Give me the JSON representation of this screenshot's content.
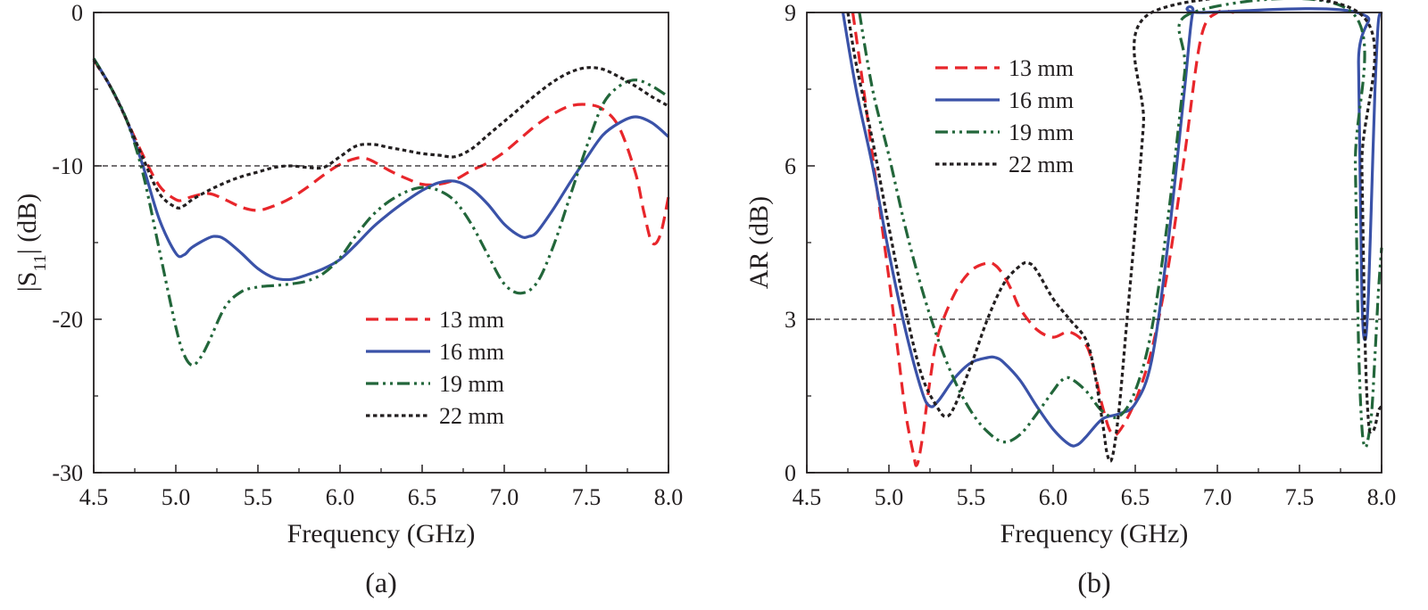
{
  "chart_data": [
    {
      "type": "line",
      "panel_label": "(a)",
      "xlabel": "Frequency (GHz)",
      "ylabel": {
        "base": "|S",
        "sub": "11",
        "rest": "| (dB)"
      },
      "xlim": [
        4.5,
        8.0
      ],
      "ylim": [
        -30,
        0
      ],
      "xticks": [
        "4.5",
        "5.0",
        "5.5",
        "6.0",
        "6.5",
        "7.0",
        "7.5",
        "8.0"
      ],
      "xtick_values": [
        4.5,
        5.0,
        5.5,
        6.0,
        6.5,
        7.0,
        7.5,
        8.0
      ],
      "yticks": [
        "0",
        "-10",
        "-20",
        "-30"
      ],
      "ytick_values": [
        0,
        -10,
        -20,
        -30
      ],
      "reference_line": -10,
      "grid": false,
      "legend_position": "center-right",
      "series": [
        {
          "name": "13 mm",
          "color": "#e8262b",
          "dash": "dashed",
          "x": [
            4.5,
            4.6,
            4.7,
            4.8,
            4.9,
            5.0,
            5.05,
            5.1,
            5.2,
            5.3,
            5.4,
            5.5,
            5.6,
            5.7,
            5.8,
            5.9,
            6.0,
            6.1,
            6.15,
            6.2,
            6.3,
            6.4,
            6.5,
            6.6,
            6.7,
            6.8,
            6.9,
            7.0,
            7.1,
            7.2,
            7.3,
            7.4,
            7.5,
            7.6,
            7.7,
            7.8,
            7.85,
            7.9,
            7.95,
            8.0
          ],
          "y": [
            -3.1,
            -4.8,
            -7.0,
            -9.3,
            -11.3,
            -12.2,
            -12.2,
            -12.0,
            -11.8,
            -12.2,
            -12.7,
            -12.9,
            -12.6,
            -12.1,
            -11.4,
            -10.6,
            -9.9,
            -9.5,
            -9.5,
            -9.7,
            -10.3,
            -10.8,
            -11.2,
            -11.2,
            -10.9,
            -10.3,
            -9.8,
            -9.1,
            -8.2,
            -7.3,
            -6.6,
            -6.1,
            -6.0,
            -6.3,
            -7.5,
            -10.5,
            -13.0,
            -15.0,
            -14.5,
            -12.0
          ]
        },
        {
          "name": "16 mm",
          "color": "#3a52a8",
          "dash": "solid",
          "x": [
            4.5,
            4.6,
            4.7,
            4.8,
            4.9,
            5.0,
            5.05,
            5.1,
            5.2,
            5.25,
            5.3,
            5.4,
            5.5,
            5.6,
            5.7,
            5.8,
            5.9,
            6.0,
            6.1,
            6.2,
            6.3,
            6.4,
            6.5,
            6.6,
            6.7,
            6.8,
            6.9,
            7.0,
            7.1,
            7.15,
            7.2,
            7.3,
            7.4,
            7.5,
            7.6,
            7.7,
            7.8,
            7.9,
            8.0
          ],
          "y": [
            -3.0,
            -4.8,
            -7.0,
            -10.0,
            -13.5,
            -15.7,
            -15.8,
            -15.3,
            -14.7,
            -14.6,
            -14.8,
            -15.7,
            -16.7,
            -17.3,
            -17.4,
            -17.1,
            -16.7,
            -16.1,
            -15.1,
            -14.0,
            -13.1,
            -12.3,
            -11.6,
            -11.1,
            -11.0,
            -11.5,
            -12.5,
            -13.8,
            -14.6,
            -14.6,
            -14.3,
            -12.8,
            -11.1,
            -9.5,
            -8.0,
            -7.2,
            -6.8,
            -7.2,
            -8.1
          ]
        },
        {
          "name": "19 mm",
          "color": "#22663a",
          "dash": "dashdotdot",
          "x": [
            4.5,
            4.6,
            4.7,
            4.8,
            4.9,
            5.0,
            5.05,
            5.1,
            5.15,
            5.2,
            5.3,
            5.4,
            5.5,
            5.6,
            5.7,
            5.8,
            5.9,
            6.0,
            6.1,
            6.2,
            6.3,
            6.4,
            6.5,
            6.6,
            6.7,
            6.8,
            6.9,
            7.0,
            7.1,
            7.2,
            7.3,
            7.4,
            7.5,
            7.6,
            7.7,
            7.8,
            7.9,
            8.0
          ],
          "y": [
            -3.0,
            -4.8,
            -7.0,
            -10.5,
            -15.5,
            -20.5,
            -22.3,
            -23.0,
            -22.5,
            -21.5,
            -19.2,
            -18.2,
            -17.9,
            -17.8,
            -17.7,
            -17.5,
            -17.0,
            -16.0,
            -14.5,
            -13.2,
            -12.3,
            -11.7,
            -11.4,
            -11.6,
            -12.3,
            -13.8,
            -15.8,
            -17.7,
            -18.3,
            -17.6,
            -15.2,
            -12.0,
            -8.8,
            -6.0,
            -4.8,
            -4.4,
            -4.8,
            -5.5
          ]
        },
        {
          "name": "22 mm",
          "color": "#231f20",
          "dash": "dotted",
          "x": [
            4.5,
            4.6,
            4.7,
            4.8,
            4.9,
            5.0,
            5.05,
            5.1,
            5.2,
            5.3,
            5.4,
            5.5,
            5.6,
            5.7,
            5.8,
            5.9,
            6.0,
            6.1,
            6.2,
            6.3,
            6.4,
            6.5,
            6.6,
            6.7,
            6.8,
            6.9,
            7.0,
            7.1,
            7.2,
            7.3,
            7.4,
            7.5,
            7.6,
            7.7,
            7.8,
            7.9,
            8.0
          ],
          "y": [
            -3.1,
            -4.8,
            -7.0,
            -9.5,
            -11.8,
            -12.7,
            -12.6,
            -12.2,
            -11.6,
            -11.1,
            -10.7,
            -10.4,
            -10.1,
            -10.0,
            -10.1,
            -10.1,
            -9.4,
            -8.7,
            -8.6,
            -8.8,
            -9.0,
            -9.2,
            -9.3,
            -9.4,
            -8.9,
            -8.0,
            -7.1,
            -6.2,
            -5.3,
            -4.5,
            -3.9,
            -3.6,
            -3.7,
            -4.2,
            -4.8,
            -5.5,
            -6.1
          ]
        }
      ]
    },
    {
      "type": "line",
      "panel_label": "(b)",
      "xlabel": "Frequency (GHz)",
      "ylabel": "AR (dB)",
      "xlim": [
        4.5,
        8.0
      ],
      "ylim": [
        0,
        9
      ],
      "xticks": [
        "4.5",
        "5.0",
        "5.5",
        "6.0",
        "6.5",
        "7.0",
        "7.5",
        "8.0"
      ],
      "xtick_values": [
        4.5,
        5.0,
        5.5,
        6.0,
        6.5,
        7.0,
        7.5,
        8.0
      ],
      "yticks": [
        "0",
        "3",
        "6",
        "9"
      ],
      "ytick_values": [
        0,
        3,
        6,
        9
      ],
      "reference_line": 3,
      "grid": false,
      "legend_position": "top-left",
      "series": [
        {
          "name": "13 mm",
          "color": "#e8262b",
          "dash": "dashed",
          "x": [
            4.78,
            4.85,
            4.9,
            5.0,
            5.05,
            5.1,
            5.15,
            5.17,
            5.2,
            5.25,
            5.3,
            5.4,
            5.5,
            5.6,
            5.65,
            5.7,
            5.75,
            5.8,
            5.9,
            6.0,
            6.1,
            6.2,
            6.25,
            6.3,
            6.35,
            6.4,
            6.5,
            6.6,
            6.7,
            6.8,
            6.9,
            7.0,
            7.1
          ],
          "y": [
            9.0,
            7.4,
            6.2,
            3.8,
            2.5,
            1.2,
            0.35,
            0.15,
            0.6,
            1.8,
            2.7,
            3.5,
            3.95,
            4.1,
            4.05,
            3.85,
            3.55,
            3.2,
            2.8,
            2.65,
            2.75,
            2.5,
            2.0,
            1.3,
            0.8,
            0.8,
            1.4,
            2.4,
            4.0,
            6.2,
            8.5,
            9.0,
            9.0
          ]
        },
        {
          "name": "16 mm",
          "color": "#3a52a8",
          "dash": "solid",
          "x": [
            4.72,
            4.8,
            4.9,
            5.0,
            5.1,
            5.2,
            5.25,
            5.3,
            5.4,
            5.5,
            5.6,
            5.65,
            5.7,
            5.8,
            5.9,
            6.0,
            6.1,
            6.15,
            6.2,
            6.3,
            6.4,
            6.5,
            6.6,
            6.7,
            6.8,
            6.85,
            6.9,
            7.85,
            7.86,
            7.88,
            7.9,
            7.92,
            7.94,
            7.96,
            7.98,
            8.0
          ],
          "y": [
            9.0,
            7.5,
            6.0,
            4.3,
            2.8,
            1.6,
            1.3,
            1.4,
            1.85,
            2.15,
            2.25,
            2.25,
            2.15,
            1.8,
            1.3,
            0.85,
            0.55,
            0.55,
            0.7,
            1.05,
            1.15,
            1.35,
            2.2,
            4.5,
            7.5,
            9.0,
            9.0,
            9.0,
            8.0,
            3.5,
            2.6,
            3.5,
            5.5,
            7.5,
            8.8,
            9.0
          ]
        },
        {
          "name": "19 mm",
          "color": "#22663a",
          "dash": "dashdotdot",
          "x": [
            4.82,
            4.9,
            5.0,
            5.1,
            5.2,
            5.3,
            5.4,
            5.5,
            5.6,
            5.7,
            5.8,
            5.9,
            6.0,
            6.05,
            6.1,
            6.2,
            6.3,
            6.4,
            6.5,
            6.6,
            6.7,
            6.8,
            6.85,
            7.82,
            7.84,
            7.86,
            7.88,
            7.9,
            7.92,
            7.94,
            7.96,
            7.98,
            8.0
          ],
          "y": [
            9.0,
            7.5,
            6.2,
            4.8,
            3.6,
            2.6,
            1.8,
            1.2,
            0.8,
            0.6,
            0.75,
            1.15,
            1.6,
            1.8,
            1.85,
            1.6,
            1.2,
            1.1,
            1.6,
            2.8,
            5.0,
            7.8,
            9.0,
            9.0,
            6.0,
            2.5,
            0.9,
            0.5,
            0.7,
            1.2,
            2.3,
            3.5,
            4.4
          ]
        },
        {
          "name": "22 mm",
          "color": "#231f20",
          "dash": "dotted",
          "x": [
            4.75,
            4.8,
            4.9,
            5.0,
            5.1,
            5.2,
            5.3,
            5.35,
            5.4,
            5.5,
            5.6,
            5.7,
            5.8,
            5.85,
            5.9,
            6.0,
            6.1,
            6.2,
            6.25,
            6.3,
            6.33,
            6.36,
            6.4,
            6.45,
            6.5,
            6.55,
            6.6,
            7.86,
            7.88,
            7.9,
            7.92,
            7.94,
            7.96,
            7.98,
            8.0
          ],
          "y": [
            9.0,
            8.0,
            6.5,
            4.8,
            3.2,
            1.9,
            1.25,
            1.1,
            1.3,
            2.1,
            3.0,
            3.7,
            4.05,
            4.1,
            3.95,
            3.4,
            3.0,
            2.6,
            2.0,
            1.0,
            0.35,
            0.3,
            1.2,
            3.0,
            4.8,
            6.8,
            9.0,
            9.0,
            6.0,
            2.5,
            1.0,
            0.8,
            0.9,
            1.2,
            1.3
          ]
        }
      ]
    }
  ]
}
